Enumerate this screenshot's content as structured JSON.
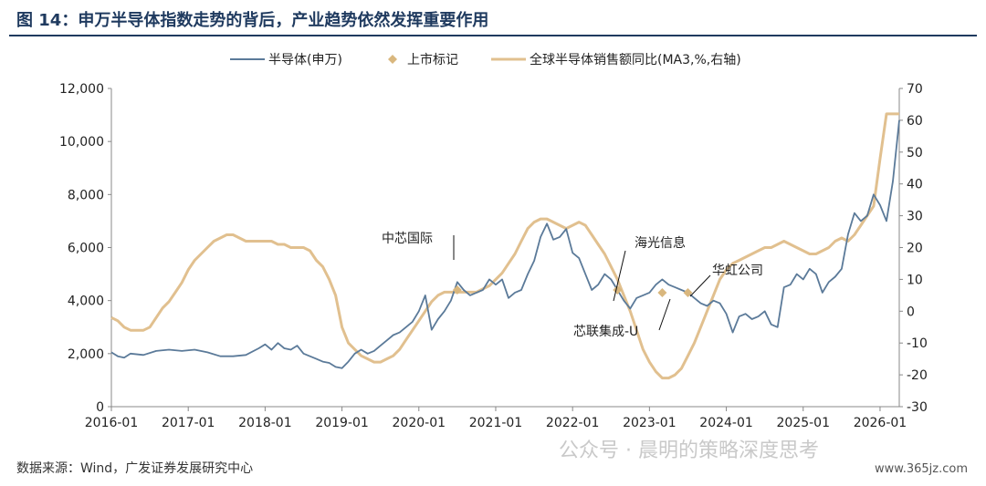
{
  "figure": {
    "title": "图 14：申万半导体指数走势的背后，产业趋势依然发挥重要作用",
    "source": "数据来源：Wind，广发证券发展研究中心",
    "watermark": "公众号 · 晨明的策略深度思考",
    "site": "www.365jz.com"
  },
  "colors": {
    "index_line": "#5b7a99",
    "sales_line": "#e1c08f",
    "marker": "#d9b77e",
    "title": "#1f3a5f"
  },
  "chart_data": {
    "type": "line",
    "legend": [
      "半导体(申万)",
      "上市标记",
      "全球半导体销售额同比(MA3,%,右轴)"
    ],
    "legend_position": "top-center",
    "x_ticks": [
      "2016-01",
      "2017-01",
      "2018-01",
      "2019-01",
      "2020-01",
      "2021-01",
      "2022-01",
      "2023-01",
      "2024-01",
      "2025-01",
      "2026-01"
    ],
    "x_range": [
      "2016-01",
      "2026-04"
    ],
    "y_left": {
      "range": [
        0,
        12000
      ],
      "ticks": [
        "0",
        "2,000",
        "4,000",
        "6,000",
        "8,000",
        "10,000",
        "12,000"
      ]
    },
    "y_right": {
      "range": [
        -30,
        70
      ],
      "ticks": [
        "-30",
        "-20",
        "-10",
        "0",
        "10",
        "20",
        "30",
        "40",
        "50",
        "60",
        "70"
      ]
    },
    "series": [
      {
        "name": "半导体(申万)",
        "axis": "left",
        "points": [
          [
            "2016-01",
            2050
          ],
          [
            "2016-02",
            1900
          ],
          [
            "2016-03",
            1850
          ],
          [
            "2016-04",
            2000
          ],
          [
            "2016-06",
            1950
          ],
          [
            "2016-08",
            2100
          ],
          [
            "2016-10",
            2150
          ],
          [
            "2016-12",
            2100
          ],
          [
            "2017-02",
            2150
          ],
          [
            "2017-04",
            2050
          ],
          [
            "2017-06",
            1900
          ],
          [
            "2017-08",
            1900
          ],
          [
            "2017-10",
            1950
          ],
          [
            "2017-12",
            2200
          ],
          [
            "2018-01",
            2350
          ],
          [
            "2018-02",
            2150
          ],
          [
            "2018-03",
            2400
          ],
          [
            "2018-04",
            2200
          ],
          [
            "2018-05",
            2150
          ],
          [
            "2018-06",
            2300
          ],
          [
            "2018-07",
            2000
          ],
          [
            "2018-08",
            1900
          ],
          [
            "2018-09",
            1800
          ],
          [
            "2018-10",
            1700
          ],
          [
            "2018-11",
            1650
          ],
          [
            "2018-12",
            1500
          ],
          [
            "2019-01",
            1450
          ],
          [
            "2019-02",
            1700
          ],
          [
            "2019-03",
            2000
          ],
          [
            "2019-04",
            2150
          ],
          [
            "2019-05",
            2000
          ],
          [
            "2019-06",
            2100
          ],
          [
            "2019-07",
            2300
          ],
          [
            "2019-08",
            2500
          ],
          [
            "2019-09",
            2700
          ],
          [
            "2019-10",
            2800
          ],
          [
            "2019-11",
            3000
          ],
          [
            "2019-12",
            3200
          ],
          [
            "2020-01",
            3600
          ],
          [
            "2020-02",
            4200
          ],
          [
            "2020-03",
            2900
          ],
          [
            "2020-04",
            3300
          ],
          [
            "2020-05",
            3600
          ],
          [
            "2020-06",
            4000
          ],
          [
            "2020-07",
            4700
          ],
          [
            "2020-08",
            4400
          ],
          [
            "2020-09",
            4200
          ],
          [
            "2020-10",
            4300
          ],
          [
            "2020-11",
            4400
          ],
          [
            "2020-12",
            4800
          ],
          [
            "2021-01",
            4600
          ],
          [
            "2021-02",
            4800
          ],
          [
            "2021-03",
            4100
          ],
          [
            "2021-04",
            4300
          ],
          [
            "2021-05",
            4400
          ],
          [
            "2021-06",
            5000
          ],
          [
            "2021-07",
            5500
          ],
          [
            "2021-08",
            6400
          ],
          [
            "2021-09",
            6900
          ],
          [
            "2021-10",
            6300
          ],
          [
            "2021-11",
            6400
          ],
          [
            "2021-12",
            6700
          ],
          [
            "2022-01",
            5800
          ],
          [
            "2022-02",
            5600
          ],
          [
            "2022-03",
            5000
          ],
          [
            "2022-04",
            4400
          ],
          [
            "2022-05",
            4600
          ],
          [
            "2022-06",
            5000
          ],
          [
            "2022-07",
            4800
          ],
          [
            "2022-08",
            4400
          ],
          [
            "2022-09",
            4000
          ],
          [
            "2022-10",
            3700
          ],
          [
            "2022-11",
            4100
          ],
          [
            "2022-12",
            4200
          ],
          [
            "2023-01",
            4300
          ],
          [
            "2023-02",
            4600
          ],
          [
            "2023-03",
            4800
          ],
          [
            "2023-04",
            4600
          ],
          [
            "2023-05",
            4500
          ],
          [
            "2023-06",
            4400
          ],
          [
            "2023-07",
            4300
          ],
          [
            "2023-08",
            4100
          ],
          [
            "2023-09",
            3900
          ],
          [
            "2023-10",
            3800
          ],
          [
            "2023-11",
            4000
          ],
          [
            "2023-12",
            3900
          ],
          [
            "2024-01",
            3500
          ],
          [
            "2024-02",
            2800
          ],
          [
            "2024-03",
            3400
          ],
          [
            "2024-04",
            3500
          ],
          [
            "2024-05",
            3300
          ],
          [
            "2024-06",
            3400
          ],
          [
            "2024-07",
            3600
          ],
          [
            "2024-08",
            3100
          ],
          [
            "2024-09",
            3000
          ],
          [
            "2024-10",
            4500
          ],
          [
            "2024-11",
            4600
          ],
          [
            "2024-12",
            5000
          ],
          [
            "2025-01",
            4800
          ],
          [
            "2025-02",
            5200
          ],
          [
            "2025-03",
            5000
          ],
          [
            "2025-04",
            4300
          ],
          [
            "2025-05",
            4700
          ],
          [
            "2025-06",
            4900
          ],
          [
            "2025-07",
            5200
          ],
          [
            "2025-08",
            6500
          ],
          [
            "2025-09",
            7300
          ],
          [
            "2025-10",
            7000
          ],
          [
            "2025-11",
            7200
          ],
          [
            "2025-12",
            8000
          ],
          [
            "2026-01",
            7600
          ],
          [
            "2026-02",
            7000
          ],
          [
            "2026-03",
            8500
          ],
          [
            "2026-04",
            10800
          ]
        ]
      },
      {
        "name": "全球半导体销售额同比(MA3,%,右轴)",
        "axis": "right",
        "points": [
          [
            "2016-01",
            -2
          ],
          [
            "2016-02",
            -3
          ],
          [
            "2016-03",
            -5
          ],
          [
            "2016-04",
            -6
          ],
          [
            "2016-05",
            -6
          ],
          [
            "2016-06",
            -6
          ],
          [
            "2016-07",
            -5
          ],
          [
            "2016-08",
            -2
          ],
          [
            "2016-09",
            1
          ],
          [
            "2016-10",
            3
          ],
          [
            "2016-11",
            6
          ],
          [
            "2016-12",
            9
          ],
          [
            "2017-01",
            13
          ],
          [
            "2017-02",
            16
          ],
          [
            "2017-03",
            18
          ],
          [
            "2017-04",
            20
          ],
          [
            "2017-05",
            22
          ],
          [
            "2017-06",
            23
          ],
          [
            "2017-07",
            24
          ],
          [
            "2017-08",
            24
          ],
          [
            "2017-09",
            23
          ],
          [
            "2017-10",
            22
          ],
          [
            "2017-11",
            22
          ],
          [
            "2017-12",
            22
          ],
          [
            "2018-01",
            22
          ],
          [
            "2018-02",
            22
          ],
          [
            "2018-03",
            21
          ],
          [
            "2018-04",
            21
          ],
          [
            "2018-05",
            20
          ],
          [
            "2018-06",
            20
          ],
          [
            "2018-07",
            20
          ],
          [
            "2018-08",
            19
          ],
          [
            "2018-09",
            16
          ],
          [
            "2018-10",
            14
          ],
          [
            "2018-11",
            10
          ],
          [
            "2018-12",
            5
          ],
          [
            "2019-01",
            -5
          ],
          [
            "2019-02",
            -10
          ],
          [
            "2019-03",
            -12
          ],
          [
            "2019-04",
            -14
          ],
          [
            "2019-05",
            -15
          ],
          [
            "2019-06",
            -16
          ],
          [
            "2019-07",
            -16
          ],
          [
            "2019-08",
            -15
          ],
          [
            "2019-09",
            -14
          ],
          [
            "2019-10",
            -12
          ],
          [
            "2019-11",
            -9
          ],
          [
            "2019-12",
            -6
          ],
          [
            "2020-01",
            -3
          ],
          [
            "2020-02",
            0
          ],
          [
            "2020-03",
            3
          ],
          [
            "2020-04",
            5
          ],
          [
            "2020-05",
            6
          ],
          [
            "2020-06",
            6
          ],
          [
            "2020-07",
            6
          ],
          [
            "2020-08",
            6
          ],
          [
            "2020-09",
            6
          ],
          [
            "2020-10",
            6
          ],
          [
            "2020-11",
            7
          ],
          [
            "2020-12",
            8
          ],
          [
            "2021-01",
            10
          ],
          [
            "2021-02",
            12
          ],
          [
            "2021-03",
            15
          ],
          [
            "2021-04",
            18
          ],
          [
            "2021-05",
            22
          ],
          [
            "2021-06",
            26
          ],
          [
            "2021-07",
            28
          ],
          [
            "2021-08",
            29
          ],
          [
            "2021-09",
            29
          ],
          [
            "2021-10",
            28
          ],
          [
            "2021-11",
            27
          ],
          [
            "2021-12",
            26
          ],
          [
            "2022-01",
            27
          ],
          [
            "2022-02",
            28
          ],
          [
            "2022-03",
            27
          ],
          [
            "2022-04",
            24
          ],
          [
            "2022-05",
            21
          ],
          [
            "2022-06",
            18
          ],
          [
            "2022-07",
            14
          ],
          [
            "2022-08",
            10
          ],
          [
            "2022-09",
            5
          ],
          [
            "2022-10",
            0
          ],
          [
            "2022-11",
            -6
          ],
          [
            "2022-12",
            -12
          ],
          [
            "2023-01",
            -16
          ],
          [
            "2023-02",
            -19
          ],
          [
            "2023-03",
            -21
          ],
          [
            "2023-04",
            -21
          ],
          [
            "2023-05",
            -20
          ],
          [
            "2023-06",
            -18
          ],
          [
            "2023-07",
            -14
          ],
          [
            "2023-08",
            -10
          ],
          [
            "2023-09",
            -5
          ],
          [
            "2023-10",
            0
          ],
          [
            "2023-11",
            5
          ],
          [
            "2023-12",
            10
          ],
          [
            "2024-01",
            13
          ],
          [
            "2024-02",
            15
          ],
          [
            "2024-03",
            16
          ],
          [
            "2024-04",
            17
          ],
          [
            "2024-05",
            18
          ],
          [
            "2024-06",
            19
          ],
          [
            "2024-07",
            20
          ],
          [
            "2024-08",
            20
          ],
          [
            "2024-09",
            21
          ],
          [
            "2024-10",
            22
          ],
          [
            "2024-11",
            21
          ],
          [
            "2024-12",
            20
          ],
          [
            "2025-01",
            19
          ],
          [
            "2025-02",
            18
          ],
          [
            "2025-03",
            18
          ],
          [
            "2025-04",
            19
          ],
          [
            "2025-05",
            20
          ],
          [
            "2025-06",
            22
          ],
          [
            "2025-07",
            23
          ],
          [
            "2025-08",
            22
          ],
          [
            "2025-09",
            24
          ],
          [
            "2025-10",
            27
          ],
          [
            "2025-11",
            30
          ],
          [
            "2025-12",
            33
          ],
          [
            "2026-01",
            48
          ],
          [
            "2026-02",
            62
          ],
          [
            "2026-03",
            62
          ],
          [
            "2026-04",
            62
          ]
        ]
      },
      {
        "name": "上市标记",
        "axis": "left",
        "points": [
          [
            "2020-07",
            4400
          ],
          [
            "2022-08",
            4400
          ],
          [
            "2023-03",
            4300
          ],
          [
            "2023-07",
            4300
          ]
        ]
      }
    ],
    "annotations": [
      {
        "label": "中芯国际",
        "x": "2020-07",
        "y": 4400
      },
      {
        "label": "海光信息",
        "x": "2022-08",
        "y": 4400
      },
      {
        "label": "芯联集成-U",
        "x": "2023-03",
        "y": 4300
      },
      {
        "label": "华虹公司",
        "x": "2023-07",
        "y": 4300
      }
    ]
  }
}
